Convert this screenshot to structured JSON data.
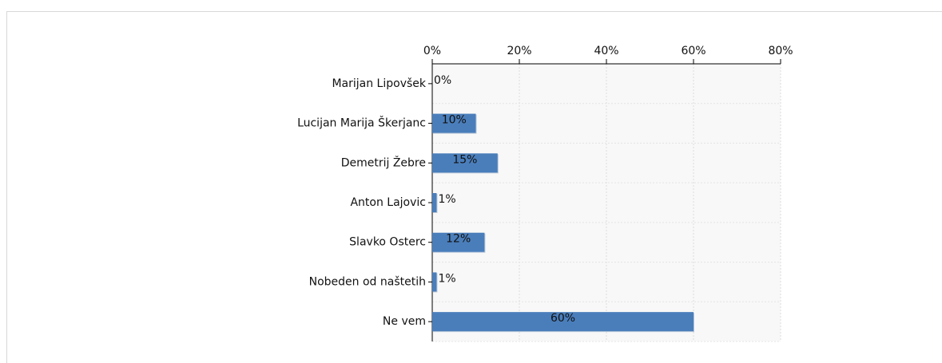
{
  "chart_data": {
    "type": "bar",
    "orientation": "horizontal",
    "categories": [
      "Marijan Lipovšek",
      "Lucijan Marija Škerjanc",
      "Demetrij Žebre",
      "Anton Lajovic",
      "Slavko Osterc",
      "Nobeden od naštetih",
      "Ne vem"
    ],
    "values": [
      0,
      10,
      15,
      1,
      12,
      1,
      60
    ],
    "value_labels": [
      "0%",
      "10%",
      "15%",
      "1%",
      "12%",
      "1%",
      "60%"
    ],
    "color": "#4a7ebb",
    "xlim": [
      0,
      80
    ],
    "xticks": [
      {
        "value": 0,
        "label": "0%"
      },
      {
        "value": 20,
        "label": "20%"
      },
      {
        "value": 40,
        "label": "40%"
      },
      {
        "value": 60,
        "label": "60%"
      },
      {
        "value": 80,
        "label": "80%"
      }
    ],
    "grid": true
  }
}
